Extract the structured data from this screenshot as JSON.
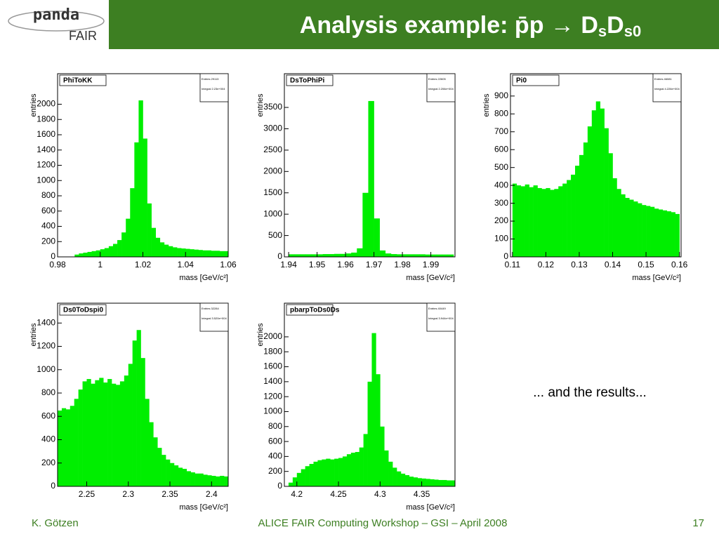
{
  "header": {
    "logo": [
      "panda",
      "FAIR"
    ],
    "title": [
      "Analysis example: p̄p → D",
      "s",
      "D",
      "s0"
    ]
  },
  "note": "... and the results...",
  "footer": {
    "author": "K. Götzen",
    "event": "ALICE FAIR Computing Workshop – GSI – April 2008",
    "page": "17"
  },
  "chart_data": [
    {
      "type": "histogram",
      "title": "PhiToKK",
      "stats": [
        "Entries 29113",
        "Integral 2.23e+004"
      ],
      "x_label": "mass [GeV/c²]",
      "y_label": "entries",
      "color": "#00ee00",
      "bins": [
        0.98,
        0.982,
        0.984,
        0.986,
        0.988,
        0.99,
        0.992,
        0.994,
        0.996,
        0.998,
        1.0,
        1.002,
        1.004,
        1.006,
        1.008,
        1.01,
        1.012,
        1.014,
        1.016,
        1.018,
        1.02,
        1.022,
        1.024,
        1.026,
        1.028,
        1.03,
        1.032,
        1.034,
        1.036,
        1.038,
        1.04,
        1.042,
        1.044,
        1.046,
        1.048,
        1.05,
        1.052,
        1.054,
        1.056,
        1.058,
        1.06
      ],
      "values": [
        0,
        0,
        0,
        0,
        30,
        45,
        55,
        65,
        75,
        85,
        100,
        115,
        140,
        170,
        220,
        320,
        500,
        900,
        1500,
        2050,
        1550,
        700,
        380,
        250,
        190,
        160,
        140,
        125,
        115,
        110,
        105,
        100,
        95,
        90,
        85,
        85,
        80,
        80,
        75,
        75
      ],
      "xlim": [
        0.98,
        1.06
      ],
      "xticks": [
        0.98,
        1,
        1.02,
        1.04,
        1.06
      ],
      "ylim": [
        0,
        2400
      ],
      "yticks": [
        0,
        200,
        400,
        600,
        800,
        1000,
        1200,
        1400,
        1600,
        1800,
        2000
      ]
    },
    {
      "type": "histogram",
      "title": "DsToPhiPi",
      "stats": [
        "Entries 22605",
        "Integral 2.206e+004"
      ],
      "x_label": "mass [GeV/c²]",
      "y_label": "entries",
      "color": "#00ee00",
      "bins": [
        1.94,
        1.942,
        1.944,
        1.946,
        1.948,
        1.95,
        1.952,
        1.954,
        1.956,
        1.958,
        1.96,
        1.962,
        1.964,
        1.966,
        1.968,
        1.97,
        1.972,
        1.974,
        1.976,
        1.978,
        1.98,
        1.982,
        1.984,
        1.986,
        1.988,
        1.99,
        1.992,
        1.994,
        1.996,
        1.998
      ],
      "values": [
        60,
        60,
        60,
        60,
        60,
        60,
        65,
        65,
        70,
        70,
        80,
        100,
        200,
        1500,
        3650,
        900,
        150,
        80,
        65,
        60,
        60,
        60,
        60,
        60,
        55,
        55,
        55,
        55,
        55
      ],
      "xlim": [
        1.9385,
        1.9985
      ],
      "xticks": [
        1.94,
        1.95,
        1.96,
        1.97,
        1.98,
        1.99
      ],
      "ylim": [
        0,
        4290
      ],
      "yticks": [
        0,
        500,
        1000,
        1500,
        2000,
        2500,
        3000,
        3500
      ]
    },
    {
      "type": "histogram",
      "title": "Pi0",
      "stats": [
        "Entries 46081",
        "Integral 4.226e+004"
      ],
      "x_label": "mass [GeV/c²]",
      "y_label": "entries",
      "color": "#00ee00",
      "bins": [
        0.11,
        0.11125,
        0.1125,
        0.11375,
        0.115,
        0.11625,
        0.1175,
        0.11875,
        0.12,
        0.12125,
        0.1225,
        0.12375,
        0.125,
        0.12625,
        0.1275,
        0.12875,
        0.13,
        0.13125,
        0.1325,
        0.13375,
        0.135,
        0.13625,
        0.1375,
        0.13875,
        0.14,
        0.14125,
        0.1425,
        0.14375,
        0.145,
        0.14625,
        0.1475,
        0.14875,
        0.15,
        0.15125,
        0.1525,
        0.15375,
        0.155,
        0.15625,
        0.1575,
        0.15875,
        0.16
      ],
      "values": [
        410,
        400,
        395,
        405,
        390,
        400,
        385,
        380,
        385,
        375,
        380,
        395,
        410,
        430,
        460,
        510,
        570,
        640,
        730,
        820,
        870,
        830,
        720,
        580,
        440,
        380,
        350,
        330,
        320,
        310,
        300,
        290,
        285,
        280,
        270,
        265,
        260,
        255,
        250,
        240
      ],
      "xlim": [
        0.1094,
        0.1605
      ],
      "xticks": [
        0.11,
        0.12,
        0.13,
        0.14,
        0.15,
        0.16
      ],
      "ylim": [
        0,
        1025
      ],
      "yticks": [
        0,
        100,
        200,
        300,
        400,
        500,
        600,
        700,
        800,
        900
      ]
    },
    {
      "type": "histogram",
      "title": "Ds0ToDspi0",
      "stats": [
        "Entries 32284",
        "Integral 3.520e+004"
      ],
      "x_label": "mass [GeV/c²]",
      "y_label": "entries",
      "color": "#00ee00",
      "bins": [
        2.215,
        2.22,
        2.225,
        2.23,
        2.235,
        2.24,
        2.245,
        2.25,
        2.255,
        2.26,
        2.265,
        2.27,
        2.275,
        2.28,
        2.285,
        2.29,
        2.295,
        2.3,
        2.305,
        2.31,
        2.315,
        2.32,
        2.325,
        2.33,
        2.335,
        2.34,
        2.345,
        2.35,
        2.355,
        2.36,
        2.365,
        2.37,
        2.375,
        2.38,
        2.385,
        2.39,
        2.395,
        2.4,
        2.405,
        2.41,
        2.415,
        2.42
      ],
      "values": [
        650,
        670,
        660,
        690,
        750,
        830,
        900,
        920,
        880,
        910,
        930,
        890,
        920,
        880,
        870,
        900,
        950,
        1050,
        1250,
        1340,
        1100,
        750,
        550,
        420,
        330,
        270,
        230,
        200,
        180,
        160,
        150,
        130,
        120,
        110,
        110,
        100,
        95,
        90,
        85,
        90,
        85
      ],
      "xlim": [
        2.215,
        2.42
      ],
      "xticks": [
        2.25,
        2.3,
        2.35,
        2.4
      ],
      "ylim": [
        0,
        1570
      ],
      "yticks": [
        0,
        200,
        400,
        600,
        800,
        1000,
        1200,
        1400
      ]
    },
    {
      "type": "histogram",
      "title": "pbarpToDs0Ds",
      "stats": [
        "Entries 40449",
        "Integral 3.944e+004"
      ],
      "x_label": "mass [GeV/c²]",
      "y_label": "entries",
      "color": "#00ee00",
      "bins": [
        4.19,
        4.195,
        4.2,
        4.205,
        4.21,
        4.215,
        4.22,
        4.225,
        4.23,
        4.235,
        4.24,
        4.245,
        4.25,
        4.255,
        4.26,
        4.265,
        4.27,
        4.275,
        4.28,
        4.285,
        4.29,
        4.295,
        4.3,
        4.305,
        4.31,
        4.315,
        4.32,
        4.325,
        4.33,
        4.335,
        4.34,
        4.345,
        4.35,
        4.355,
        4.36,
        4.365,
        4.37,
        4.375,
        4.38,
        4.385,
        4.39
      ],
      "values": [
        50,
        120,
        180,
        230,
        270,
        300,
        330,
        350,
        360,
        370,
        360,
        370,
        380,
        400,
        430,
        450,
        460,
        520,
        700,
        1400,
        2050,
        1500,
        800,
        480,
        330,
        250,
        200,
        170,
        150,
        130,
        120,
        110,
        105,
        100,
        95,
        90,
        85,
        85,
        80,
        80
      ],
      "xlim": [
        4.185,
        4.39
      ],
      "xticks": [
        4.2,
        4.25,
        4.3,
        4.35
      ],
      "ylim": [
        0,
        2450
      ],
      "yticks": [
        0,
        200,
        400,
        600,
        800,
        1000,
        1200,
        1400,
        1600,
        1800,
        2000
      ]
    }
  ]
}
